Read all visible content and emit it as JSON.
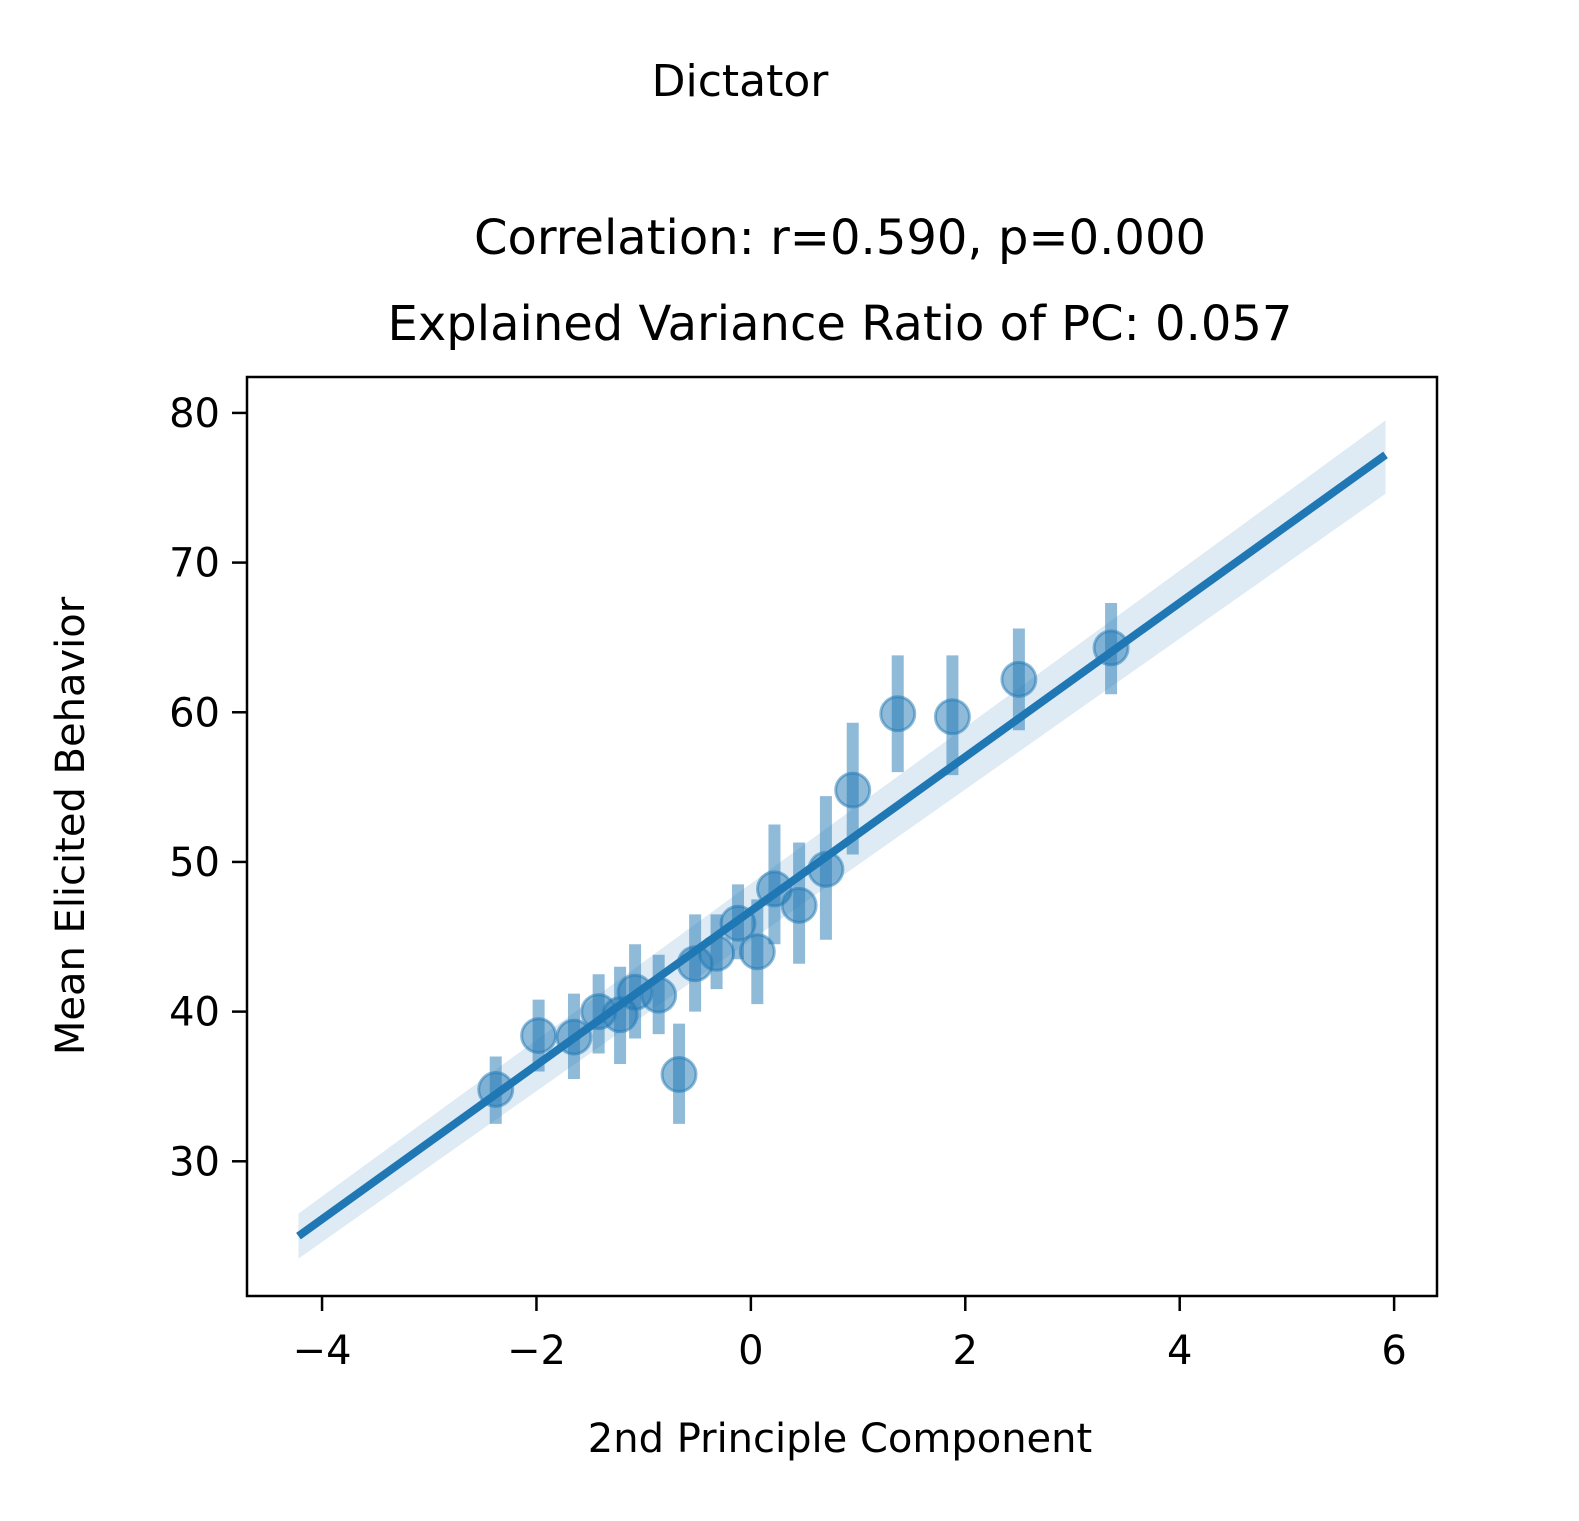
{
  "figure": {
    "suptitle": "Dictator",
    "title_line1": "Correlation: r=0.590, p=0.000",
    "title_line2": "Explained Variance Ratio of PC: 0.057"
  },
  "chart_data": {
    "type": "scatter",
    "title": "Dictator",
    "subtitle": "Correlation: r=0.590, p=0.000 / Explained Variance Ratio of PC: 0.057",
    "xlabel": "2nd Principle Component",
    "ylabel": "Mean Elicited Behavior",
    "xlim": [
      -4.7,
      6.4
    ],
    "ylim": [
      21,
      82.4
    ],
    "x_ticks": [
      -4,
      -2,
      0,
      2,
      4,
      6
    ],
    "x_tick_labels": [
      "−4",
      "−2",
      "0",
      "2",
      "4",
      "6"
    ],
    "y_ticks": [
      30,
      40,
      50,
      60,
      70,
      80
    ],
    "y_tick_labels": [
      "30",
      "40",
      "50",
      "60",
      "70",
      "80"
    ],
    "grid": false,
    "series": [
      {
        "kind": "points_with_error_bars",
        "color": "#1f77b4",
        "points": [
          {
            "x": -2.38,
            "y": 34.8,
            "ylow": 32.5,
            "yhigh": 37.0
          },
          {
            "x": -1.98,
            "y": 38.4,
            "ylow": 36.0,
            "yhigh": 40.8
          },
          {
            "x": -1.65,
            "y": 38.3,
            "ylow": 35.5,
            "yhigh": 41.2
          },
          {
            "x": -1.42,
            "y": 40.0,
            "ylow": 37.2,
            "yhigh": 42.5
          },
          {
            "x": -1.22,
            "y": 39.8,
            "ylow": 36.5,
            "yhigh": 43.0
          },
          {
            "x": -1.08,
            "y": 41.3,
            "ylow": 38.2,
            "yhigh": 44.5
          },
          {
            "x": -0.86,
            "y": 41.1,
            "ylow": 38.5,
            "yhigh": 43.8
          },
          {
            "x": -0.67,
            "y": 35.8,
            "ylow": 32.5,
            "yhigh": 39.2
          },
          {
            "x": -0.52,
            "y": 43.2,
            "ylow": 40.0,
            "yhigh": 46.5
          },
          {
            "x": -0.32,
            "y": 43.9,
            "ylow": 41.5,
            "yhigh": 46.5
          },
          {
            "x": -0.12,
            "y": 45.9,
            "ylow": 43.5,
            "yhigh": 48.5
          },
          {
            "x": 0.06,
            "y": 44.0,
            "ylow": 40.5,
            "yhigh": 47.5
          },
          {
            "x": 0.22,
            "y": 48.2,
            "ylow": 44.5,
            "yhigh": 52.5
          },
          {
            "x": 0.45,
            "y": 47.1,
            "ylow": 43.2,
            "yhigh": 51.3
          },
          {
            "x": 0.7,
            "y": 49.5,
            "ylow": 44.8,
            "yhigh": 54.4
          },
          {
            "x": 0.95,
            "y": 54.8,
            "ylow": 50.5,
            "yhigh": 59.3
          },
          {
            "x": 1.37,
            "y": 59.9,
            "ylow": 56.0,
            "yhigh": 63.8
          },
          {
            "x": 1.88,
            "y": 59.7,
            "ylow": 55.8,
            "yhigh": 63.8
          },
          {
            "x": 2.5,
            "y": 62.2,
            "ylow": 58.8,
            "yhigh": 65.6
          },
          {
            "x": 3.36,
            "y": 64.3,
            "ylow": 61.2,
            "yhigh": 67.3
          }
        ]
      },
      {
        "kind": "regression_line",
        "color": "#1f77b4",
        "x": [
          -4.22,
          5.92
        ],
        "y": [
          25.0,
          77.2
        ],
        "ci_lower": [
          23.5,
          74.6
        ],
        "ci_upper": [
          26.5,
          79.5
        ]
      }
    ]
  }
}
